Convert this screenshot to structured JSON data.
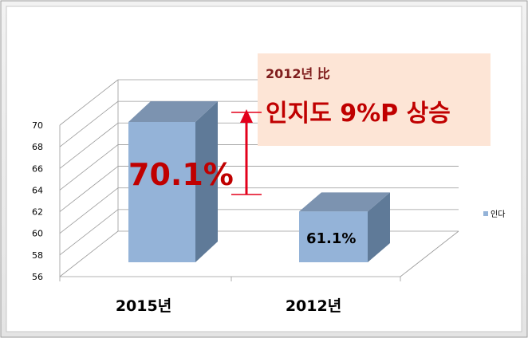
{
  "chart_data": {
    "type": "bar",
    "categories": [
      "2015년",
      "2012년"
    ],
    "series": [
      {
        "name": "인다",
        "values": [
          70.1,
          61.1
        ]
      }
    ],
    "data_labels": [
      "70.1%",
      "61.1%"
    ],
    "ylim": [
      56,
      70
    ],
    "yticks": [
      56,
      58,
      60,
      62,
      64,
      66,
      68,
      70
    ],
    "grid": true,
    "legend_position": "right",
    "three_d": true,
    "colors": {
      "bar_front": "#94b3d8",
      "bar_side": "#5f7a98",
      "bar_top": "#7c93b0",
      "highlight": "#c00000",
      "arrow": "#e3001b",
      "callout_bg": "#fde5d6"
    }
  },
  "callout": {
    "subtitle": "2012년 比",
    "headline": "인지도 9%P 상승"
  }
}
